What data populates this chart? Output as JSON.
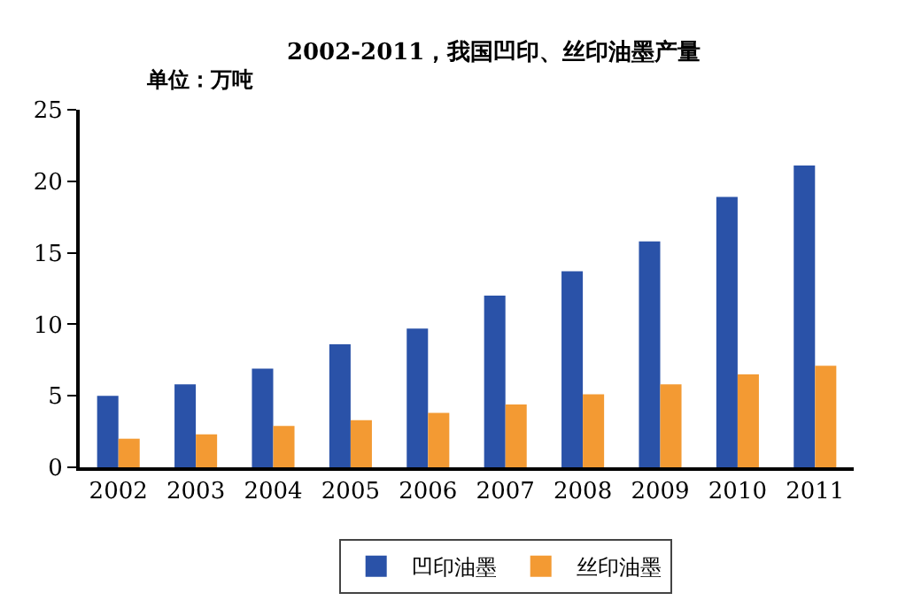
{
  "chart_data": {
    "type": "bar",
    "title": "2002-2011，我国凹印、丝印油墨产量",
    "annotations": [
      "单位：万吨"
    ],
    "categories": [
      "2002",
      "2003",
      "2004",
      "2005",
      "2006",
      "2007",
      "2008",
      "2009",
      "2010",
      "2011"
    ],
    "series": [
      {
        "name": "凹印油墨",
        "color": "#2a52a8",
        "values": [
          5.0,
          5.8,
          6.9,
          8.6,
          9.7,
          12.0,
          13.7,
          15.8,
          18.9,
          21.1
        ]
      },
      {
        "name": "丝印油墨",
        "color": "#f39a33",
        "values": [
          2.0,
          2.3,
          2.9,
          3.3,
          3.8,
          4.4,
          5.1,
          5.8,
          6.5,
          7.1
        ]
      }
    ],
    "ylim": [
      0,
      25
    ],
    "yticks": [
      0,
      5,
      10,
      15,
      20,
      25
    ],
    "grid": false,
    "legend": "bottom"
  }
}
